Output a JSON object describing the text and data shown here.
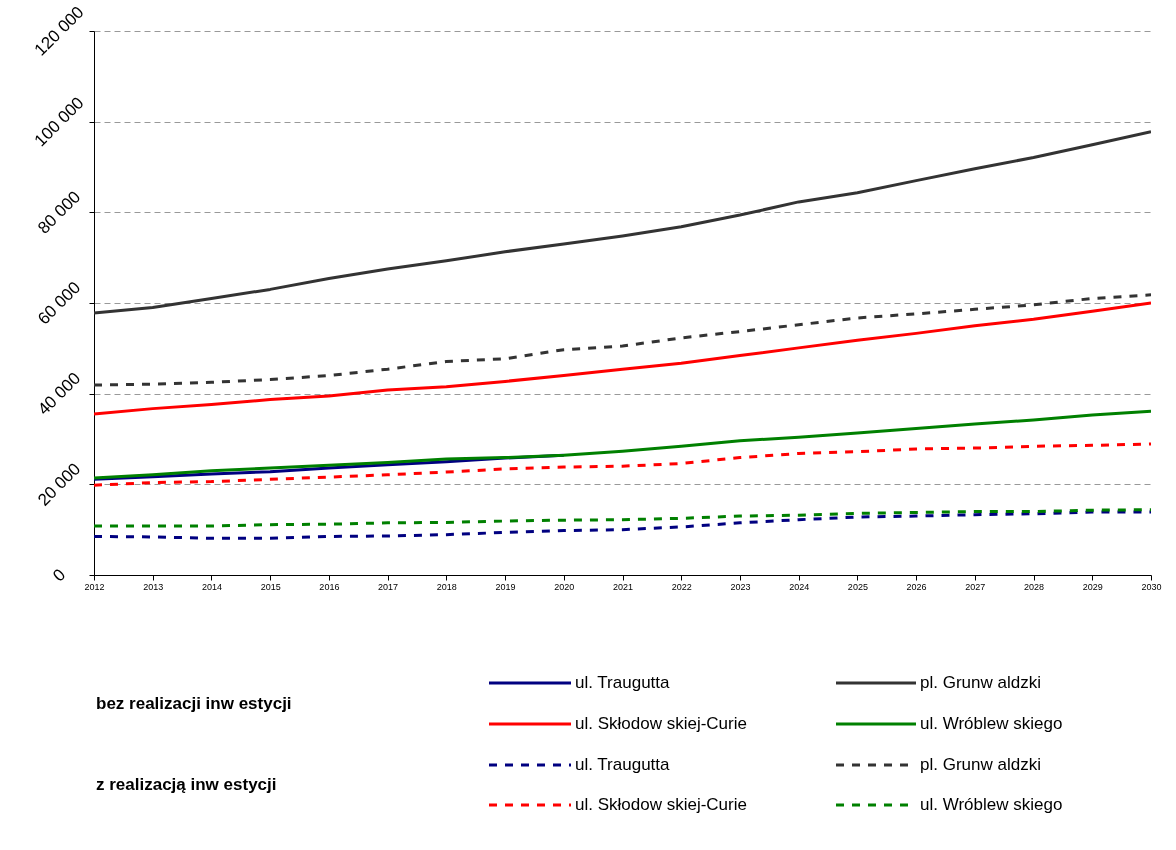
{
  "chart_data": {
    "type": "line",
    "x": [
      2012,
      2013,
      2014,
      2015,
      2016,
      2017,
      2018,
      2019,
      2020,
      2021,
      2022,
      2023,
      2024,
      2025,
      2026,
      2027,
      2028,
      2029,
      2030
    ],
    "xlim": [
      2012,
      2030
    ],
    "xticks": [
      2012,
      2013,
      2014,
      2015,
      2016,
      2017,
      2018,
      2019,
      2020,
      2021,
      2022,
      2023,
      2024,
      2025,
      2026,
      2027,
      2028,
      2029,
      2030
    ],
    "ylim": [
      0,
      120000
    ],
    "yticks": [
      {
        "value": 0,
        "label": "0"
      },
      {
        "value": 20000,
        "label": "20 000"
      },
      {
        "value": 40000,
        "label": "40 000"
      },
      {
        "value": 60000,
        "label": "60 000"
      },
      {
        "value": 80000,
        "label": "80 000"
      },
      {
        "value": 100000,
        "label": "100 000"
      },
      {
        "value": 120000,
        "label": "120 000"
      }
    ],
    "grid": "y",
    "legend": "bottom",
    "marker": "none",
    "annotations": [
      "bez realizacji inw estycji",
      "z realizacją inw estycji"
    ],
    "series": [
      {
        "name": "ul. Traugutta",
        "color": "#000080",
        "line_style": "solid",
        "values": [
          21100,
          21700,
          22300,
          22800,
          23600,
          24300,
          25000,
          25800,
          26400,
          null,
          null,
          null,
          null,
          null,
          null,
          null,
          null,
          null,
          null
        ]
      },
      {
        "name": "pl. Grunw aldzki",
        "color": "#333333",
        "line_style": "solid",
        "values": [
          57800,
          59000,
          61000,
          63000,
          65400,
          67500,
          69300,
          71300,
          73000,
          74800,
          76800,
          79400,
          82300,
          84300,
          87000,
          89600,
          92100,
          94900,
          97800
        ]
      },
      {
        "name": "ul. Skłodow skiej-Curie",
        "color": "#ff0000",
        "line_style": "solid",
        "values": [
          35500,
          36700,
          37600,
          38700,
          39500,
          40800,
          41500,
          42700,
          44000,
          45400,
          46700,
          48400,
          50100,
          51800,
          53300,
          55000,
          56400,
          58200,
          60000
        ]
      },
      {
        "name": "ul. Wróblew skiego",
        "color": "#008000",
        "line_style": "solid",
        "values": [
          21400,
          22100,
          23000,
          23600,
          24200,
          24800,
          25600,
          25900,
          26400,
          27300,
          28400,
          29600,
          30400,
          31300,
          32300,
          33300,
          34200,
          35300,
          36100
        ]
      },
      {
        "name": "ul. Traugutta",
        "color": "#000080",
        "line_style": "dashed",
        "values": [
          8500,
          8400,
          8100,
          8100,
          8500,
          8600,
          8900,
          9400,
          9800,
          10000,
          10600,
          11500,
          12200,
          12800,
          13000,
          13300,
          13500,
          13900,
          13900
        ]
      },
      {
        "name": "pl. Grunw aldzki",
        "color": "#333333",
        "line_style": "dashed",
        "values": [
          41900,
          42100,
          42500,
          43100,
          44000,
          45400,
          47100,
          47700,
          49700,
          50500,
          52300,
          53700,
          55200,
          56700,
          57600,
          58600,
          59600,
          61000,
          61800
        ]
      },
      {
        "name": "ul. Skłodow skiej-Curie",
        "color": "#ff0000",
        "line_style": "dashed",
        "values": [
          19800,
          20400,
          20600,
          21100,
          21600,
          22100,
          22700,
          23400,
          23800,
          24000,
          24600,
          25900,
          26800,
          27200,
          27800,
          28000,
          28400,
          28600,
          28900
        ]
      },
      {
        "name": "ul. Wróblew skiego",
        "color": "#008000",
        "line_style": "dashed",
        "values": [
          10800,
          10800,
          10800,
          11100,
          11200,
          11500,
          11600,
          11900,
          12100,
          12200,
          12500,
          13000,
          13200,
          13600,
          13800,
          14000,
          14000,
          14300,
          14400
        ]
      }
    ]
  }
}
